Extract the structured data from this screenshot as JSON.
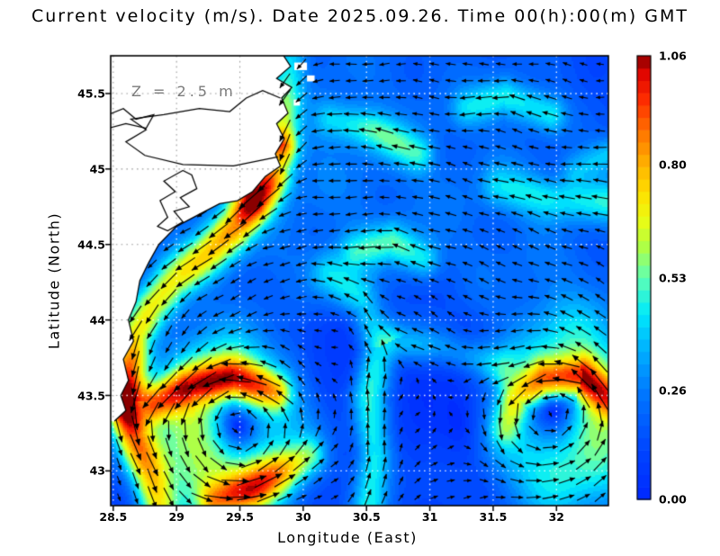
{
  "title": "Current velocity (m/s). Date 2025.09.26. Time 00(h):00(m) GMT",
  "chart_data": {
    "type": "heatmap",
    "subtype": "velocity-magnitude-with-quiver",
    "units": "m/s",
    "annotation": "Z = 2.5 m",
    "axes": {
      "xlabel": "Longitude (East)",
      "ylabel": "Latitude (North)",
      "xlim": [
        28.48,
        32.41
      ],
      "ylim": [
        42.77,
        45.75
      ],
      "xticks": [
        28.5,
        29,
        29.5,
        30,
        30.5,
        31,
        31.5,
        32
      ],
      "xtick_labels": [
        "28.5",
        "29",
        "29.5",
        "30",
        "30.5",
        "31",
        "31.5",
        "32"
      ],
      "yticks": [
        43,
        43.5,
        44,
        44.5,
        45,
        45.5
      ],
      "ytick_labels": [
        "43",
        "43.5",
        "44",
        "44.5",
        "45",
        "45.5"
      ],
      "grid": true,
      "grid_step": 0.5
    },
    "colorbar": {
      "vmin": 0.0,
      "vmax": 1.06,
      "levels": 36,
      "ticks": [
        {
          "label": "1.06",
          "value": 1.06
        },
        {
          "label": "0.80",
          "value": 0.8
        },
        {
          "label": "0.53",
          "value": 0.53
        },
        {
          "label": "0.26",
          "value": 0.26
        },
        {
          "label": "0.00",
          "value": 0.0
        }
      ],
      "stops": [
        [
          0.0,
          0,
          40,
          255
        ],
        [
          0.12,
          0,
          72,
          255
        ],
        [
          0.24,
          0,
          120,
          255
        ],
        [
          0.34,
          0,
          178,
          255
        ],
        [
          0.42,
          0,
          235,
          252
        ],
        [
          0.5,
          96,
          255,
          180
        ],
        [
          0.57,
          175,
          255,
          70
        ],
        [
          0.63,
          235,
          252,
          20
        ],
        [
          0.69,
          255,
          225,
          0
        ],
        [
          0.76,
          255,
          175,
          0
        ],
        [
          0.83,
          255,
          115,
          0
        ],
        [
          0.9,
          255,
          45,
          0
        ],
        [
          0.96,
          225,
          5,
          0
        ],
        [
          1.0,
          138,
          0,
          0
        ]
      ]
    },
    "coastline": [
      [
        29.83,
        45.77
      ],
      [
        29.9,
        45.68
      ],
      [
        29.79,
        45.6
      ],
      [
        29.91,
        45.54
      ],
      [
        29.83,
        45.47
      ],
      [
        29.88,
        45.37
      ],
      [
        29.79,
        45.3
      ],
      [
        29.85,
        45.2
      ],
      [
        29.78,
        45.1
      ],
      [
        29.82,
        45.02
      ],
      [
        29.7,
        44.95
      ],
      [
        29.6,
        44.85
      ],
      [
        29.48,
        44.79
      ],
      [
        29.34,
        44.77
      ],
      [
        29.18,
        44.7
      ],
      [
        29.0,
        44.62
      ],
      [
        28.86,
        44.5
      ],
      [
        28.78,
        44.38
      ],
      [
        28.71,
        44.26
      ],
      [
        28.68,
        44.12
      ],
      [
        28.62,
        44.0
      ],
      [
        28.66,
        43.86
      ],
      [
        28.58,
        43.74
      ],
      [
        28.62,
        43.6
      ],
      [
        28.56,
        43.5
      ],
      [
        28.6,
        43.4
      ],
      [
        28.51,
        43.33
      ]
    ],
    "land_corner": [
      28.46,
      45.78,
      28.46,
      43.33
    ],
    "lagoon_contours": {
      "danube_delta": [
        [
          29.8,
          45.08
        ],
        [
          29.45,
          45.02
        ],
        [
          29.05,
          45.03
        ],
        [
          28.75,
          45.09
        ],
        [
          28.6,
          45.18
        ],
        [
          28.76,
          45.26
        ],
        [
          28.64,
          45.33
        ],
        [
          28.9,
          45.36
        ],
        [
          29.18,
          45.4
        ],
        [
          29.42,
          45.38
        ],
        [
          29.55,
          45.47
        ],
        [
          29.68,
          45.52
        ],
        [
          29.82,
          45.47
        ]
      ],
      "north_lake": [
        [
          28.46,
          45.36
        ],
        [
          28.58,
          45.4
        ],
        [
          28.68,
          45.33
        ],
        [
          28.82,
          45.36
        ],
        [
          28.76,
          45.27
        ],
        [
          28.6,
          45.3
        ],
        [
          28.46,
          45.27
        ]
      ],
      "razelm_lagoon": [
        [
          29.05,
          44.99
        ],
        [
          28.9,
          44.92
        ],
        [
          28.99,
          44.85
        ],
        [
          28.87,
          44.79
        ],
        [
          28.93,
          44.68
        ],
        [
          28.85,
          44.62
        ],
        [
          28.93,
          44.59
        ],
        [
          29.05,
          44.65
        ],
        [
          28.98,
          44.72
        ],
        [
          29.1,
          44.75
        ],
        [
          29.03,
          44.81
        ],
        [
          29.16,
          44.87
        ],
        [
          29.12,
          44.96
        ],
        [
          29.05,
          44.99
        ]
      ]
    },
    "land_cells": [
      [
        29.98,
        45.68,
        0.1,
        0.05
      ],
      [
        30.06,
        45.6,
        0.06,
        0.04
      ],
      [
        29.95,
        45.44,
        0.05,
        0.04
      ]
    ],
    "flow_field": {
      "westward_drift": {
        "u": -0.11,
        "v": -0.015,
        "lat_start": 43.9,
        "lat_full": 44.4
      },
      "gyres": [
        {
          "name": "basin-cyclonic-gyre",
          "cx": 30.3,
          "cy": 43.55,
          "r0": 1.4,
          "s": 0.13
        },
        {
          "name": "sw-cyclonic-eddy",
          "cx": 29.45,
          "cy": 43.28,
          "r0": 0.34,
          "s": 0.5
        },
        {
          "name": "se-cyclonic-eddy",
          "cx": 32.02,
          "cy": 43.4,
          "r0": 0.37,
          "s": 0.45
        }
      ],
      "jets": [
        {
          "name": "rim-current-coastal-jet",
          "w": 0.15,
          "pts": [
            [
              29.9,
              45.75,
              0.3
            ],
            [
              29.87,
              45.5,
              0.45
            ],
            [
              29.84,
              45.3,
              0.55
            ],
            [
              29.82,
              45.16,
              0.85
            ],
            [
              29.8,
              45.02,
              0.55
            ],
            [
              29.71,
              44.9,
              0.8
            ],
            [
              29.6,
              44.78,
              0.95
            ],
            [
              29.47,
              44.62,
              0.62
            ],
            [
              29.22,
              44.42,
              0.5
            ],
            [
              28.98,
              44.26,
              0.45
            ],
            [
              28.8,
              44.08,
              0.5
            ],
            [
              28.68,
              43.9,
              0.55
            ],
            [
              28.62,
              43.68,
              0.75
            ],
            [
              28.58,
              43.45,
              1.06
            ],
            [
              28.66,
              43.22,
              0.62
            ],
            [
              28.78,
              42.98,
              0.5
            ],
            [
              28.84,
              42.78,
              0.45
            ]
          ]
        },
        {
          "name": "onshore-arc-inflow",
          "w": 0.13,
          "pts": [
            [
              29.78,
              43.52,
              0.45
            ],
            [
              29.45,
              43.62,
              0.55
            ],
            [
              29.1,
              43.56,
              0.55
            ],
            [
              28.82,
              43.44,
              0.6
            ]
          ]
        },
        {
          "name": "mid-diagonal-band",
          "w": 0.16,
          "pts": [
            [
              30.52,
              42.78,
              0.4
            ],
            [
              30.56,
              43.1,
              0.42
            ],
            [
              30.52,
              43.5,
              0.4
            ],
            [
              30.6,
              43.82,
              0.38
            ],
            [
              30.48,
              44.12,
              0.32
            ],
            [
              30.2,
              44.3,
              0.28
            ]
          ]
        },
        {
          "name": "mid-band-west-hook",
          "w": 0.13,
          "pts": [
            [
              30.95,
              44.4,
              0.26
            ],
            [
              30.7,
              44.52,
              0.3
            ],
            [
              30.42,
              44.46,
              0.24
            ]
          ]
        },
        {
          "name": "se-eddy-crescent",
          "w": 0.13,
          "pts": [
            [
              32.45,
              43.45,
              0.5
            ],
            [
              32.2,
              43.62,
              0.62
            ],
            [
              31.9,
              43.6,
              0.55
            ],
            [
              31.68,
              43.48,
              0.42
            ],
            [
              31.6,
              43.28,
              0.3
            ]
          ]
        },
        {
          "name": "bridge-filament",
          "w": 0.14,
          "pts": [
            [
              31.55,
              43.68,
              0.28
            ],
            [
              31.1,
              43.82,
              0.24
            ],
            [
              30.72,
              43.85,
              0.28
            ]
          ]
        },
        {
          "name": "south-eastward-limb",
          "w": 0.13,
          "pts": [
            [
              29.3,
              42.8,
              0.42
            ],
            [
              29.6,
              42.88,
              0.48
            ],
            [
              29.85,
              43.0,
              0.4
            ],
            [
              30.05,
              43.1,
              0.3
            ]
          ]
        },
        {
          "name": "north-filament-1",
          "w": 0.13,
          "pts": [
            [
              31.95,
              45.36,
              0.28
            ],
            [
              31.6,
              45.48,
              0.3
            ],
            [
              31.3,
              45.4,
              0.22
            ]
          ]
        },
        {
          "name": "east-filament",
          "w": 0.15,
          "pts": [
            [
              32.42,
              44.78,
              0.3
            ],
            [
              31.95,
              44.8,
              0.28
            ],
            [
              31.55,
              44.88,
              0.22
            ]
          ]
        },
        {
          "name": "ne-edge-spot",
          "w": 0.12,
          "pts": [
            [
              32.42,
              45.1,
              0.26
            ],
            [
              32.15,
              45.0,
              0.2
            ]
          ]
        },
        {
          "name": "north-filament-2",
          "w": 0.13,
          "pts": [
            [
              30.9,
              45.1,
              0.28
            ],
            [
              30.55,
              45.26,
              0.3
            ],
            [
              30.22,
              45.33,
              0.22
            ]
          ]
        }
      ]
    },
    "quiver": {
      "nx": 30,
      "ny": 27,
      "len_base": 5,
      "len_scale": 30,
      "max_mag": 1.1
    }
  }
}
